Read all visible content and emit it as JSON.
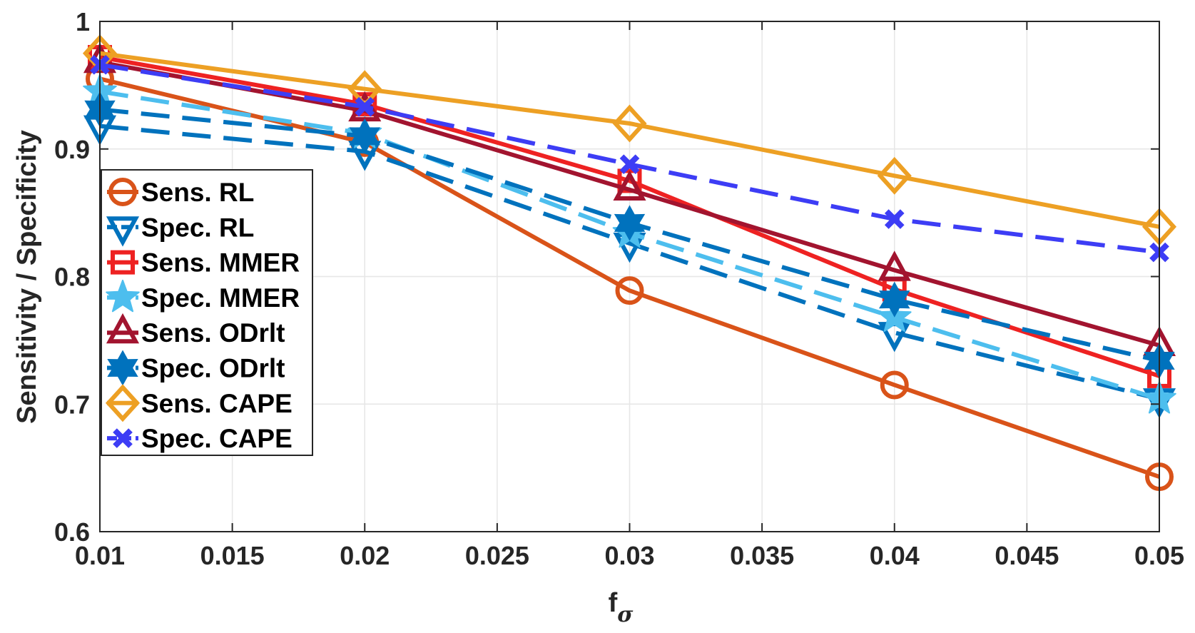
{
  "chart_data": {
    "type": "line",
    "title": "",
    "xlabel": "f",
    "xlabel_subscript": "σ",
    "ylabel": "Sensitivity / Specificity",
    "xlim": [
      0.01,
      0.05
    ],
    "ylim": [
      0.6,
      1.0
    ],
    "grid": true,
    "legend_position": "left-middle",
    "x": [
      0.01,
      0.02,
      0.03,
      0.04,
      0.05
    ],
    "x_ticks": [
      0.01,
      0.015,
      0.02,
      0.025,
      0.03,
      0.035,
      0.04,
      0.045,
      0.05
    ],
    "x_tick_labels": [
      "0.01",
      "0.015",
      "0.02",
      "0.025",
      "0.03",
      "0.035",
      "0.04",
      "0.045",
      "0.05"
    ],
    "y_ticks": [
      0.6,
      0.7,
      0.8,
      0.9,
      1.0
    ],
    "y_tick_labels": [
      "0.6",
      "0.7",
      "0.8",
      "0.9",
      "1"
    ],
    "series": [
      {
        "name": "Sens. RL",
        "values": [
          0.955,
          0.905,
          0.789,
          0.715,
          0.643
        ],
        "color": "#D95319",
        "marker": "circle",
        "dash": false
      },
      {
        "name": "Spec. RL",
        "values": [
          0.918,
          0.898,
          0.826,
          0.756,
          0.704
        ],
        "color": "#0072BD",
        "marker": "triangle-down",
        "dash": true
      },
      {
        "name": "Sens. MMER",
        "values": [
          0.972,
          0.935,
          0.875,
          0.79,
          0.722
        ],
        "color": "#EE2222",
        "marker": "square",
        "dash": false
      },
      {
        "name": "Spec. MMER",
        "values": [
          0.945,
          0.912,
          0.834,
          0.768,
          0.704
        ],
        "color": "#4DBEEE",
        "marker": "star",
        "dash": true
      },
      {
        "name": "Sens. ODrlt",
        "values": [
          0.968,
          0.93,
          0.868,
          0.805,
          0.746
        ],
        "color": "#A2142F",
        "marker": "triangle-up",
        "dash": false
      },
      {
        "name": "Spec. ODrlt",
        "values": [
          0.931,
          0.91,
          0.842,
          0.782,
          0.734
        ],
        "color": "#0072BD",
        "marker": "hexagram",
        "dash": true
      },
      {
        "name": "Sens. CAPE",
        "values": [
          0.975,
          0.947,
          0.92,
          0.879,
          0.839
        ],
        "color": "#EDA024",
        "marker": "diamond",
        "dash": false
      },
      {
        "name": "Spec. CAPE",
        "values": [
          0.966,
          0.933,
          0.888,
          0.845,
          0.819
        ],
        "color": "#3D3DF5",
        "marker": "x",
        "dash": true
      }
    ]
  }
}
